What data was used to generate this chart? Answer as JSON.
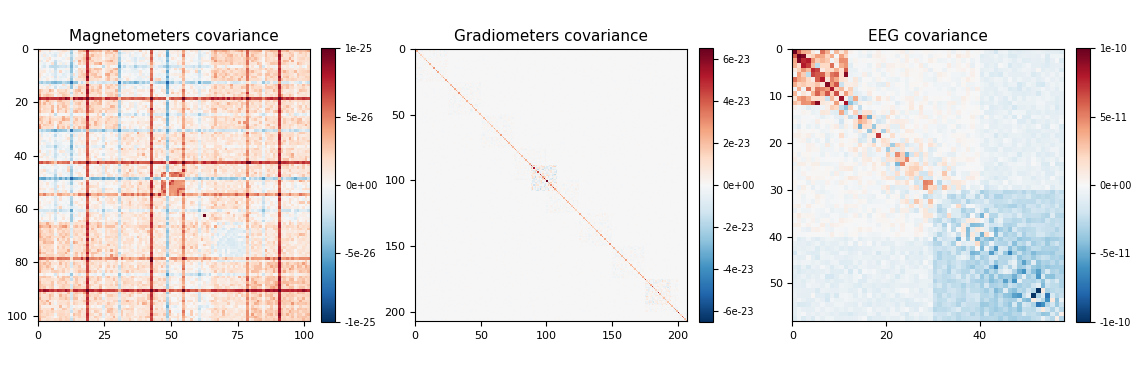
{
  "plots": [
    {
      "title": "Magnetometers covariance",
      "size": 102,
      "vmin": -1e-25,
      "vmax": 1e-25,
      "xticks": [
        0,
        25,
        50,
        75,
        100
      ],
      "yticks": [
        0,
        20,
        40,
        60,
        80,
        100
      ],
      "colorbar_ticks": [
        -1e-25,
        -5e-26,
        0,
        5e-26,
        1e-25
      ],
      "colorbar_ticklabels": [
        "-1e-25",
        "-5e-26",
        "0e+00",
        "5e-26",
        "1e-25"
      ],
      "type": "magnetometer",
      "seed": 12345
    },
    {
      "title": "Gradiometers covariance",
      "size": 207,
      "vmin": -6.5e-23,
      "vmax": 6.5e-23,
      "xticks": [
        0,
        50,
        100,
        150,
        200
      ],
      "yticks": [
        0,
        50,
        100,
        150,
        200
      ],
      "colorbar_ticks": [
        -6e-23,
        -4e-23,
        -2e-23,
        0,
        2e-23,
        4e-23,
        6e-23
      ],
      "colorbar_ticklabels": [
        "-6e-23",
        "-4e-23",
        "-2e-23",
        "0e+00",
        "2e-23",
        "4e-23",
        "6e-23"
      ],
      "type": "gradiometer",
      "seed": 22222
    },
    {
      "title": "EEG covariance",
      "size": 58,
      "vmin": -1e-10,
      "vmax": 1e-10,
      "xticks": [
        0,
        20,
        40
      ],
      "yticks": [
        0,
        10,
        20,
        30,
        40,
        50
      ],
      "colorbar_ticks": [
        -1e-10,
        -5e-11,
        0,
        5e-11,
        1e-10
      ],
      "colorbar_ticklabels": [
        "-1e-10",
        "-5e-11",
        "0e+00",
        "5e-11",
        "1e-10"
      ],
      "type": "eeg",
      "seed": 33333
    }
  ],
  "cmap": "RdBu_r"
}
